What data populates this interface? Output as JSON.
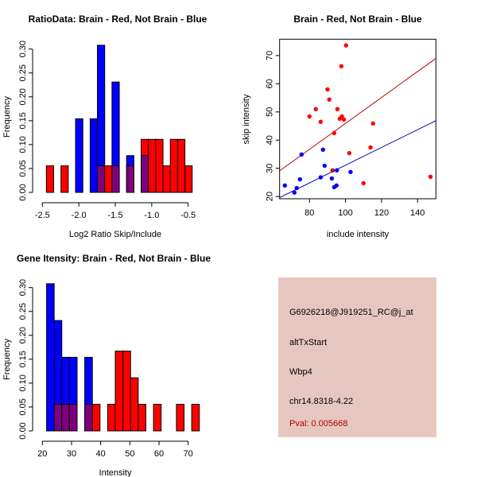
{
  "colors": {
    "red": "#ff0000",
    "blue": "#0000ff",
    "overlap": "#7f007f",
    "panel_bg": "#e6c7c0",
    "pval": "#b00000",
    "red_line": "#b00000",
    "blue_line": "#0000b0"
  },
  "chart_data": [
    {
      "type": "bar",
      "title": "RatioData: Brain - Red, Not Brain - Blue",
      "xlabel": "Log2 Ratio Skip/Include",
      "ylabel": "Frequency",
      "xlim": [
        -2.5,
        -0.5
      ],
      "ylim": [
        0,
        0.3
      ],
      "xticks": [
        -2.5,
        -2.0,
        -1.5,
        -1.0,
        -0.5
      ],
      "xtick_labels": [
        "-2.5",
        "-2.0",
        "-1.5",
        "-1.0",
        "-0.5"
      ],
      "yticks": [
        0,
        0.05,
        0.1,
        0.15,
        0.2,
        0.25,
        0.3
      ],
      "ytick_labels": [
        "0.00",
        "0.05",
        "0.10",
        "0.15",
        "0.20",
        "0.25",
        "0.30"
      ],
      "bin_start": -2.445,
      "bin_width": 0.1,
      "series": [
        {
          "name": "Brain",
          "color": "red",
          "bins": {
            "0": 0.0556,
            "2": 0.0556,
            "7": 0.0556,
            "8": 0.0556,
            "9": 0.0556,
            "11": 0.0556,
            "13": 0.111,
            "14": 0.111,
            "15": 0.111,
            "16": 0.0556,
            "17": 0.111,
            "18": 0.111,
            "19": 0.0556
          }
        },
        {
          "name": "Not Brain",
          "color": "blue",
          "bins": {
            "4": 0.154,
            "6": 0.154,
            "7": 0.308,
            "9": 0.231,
            "11": 0.077,
            "13": 0.077
          }
        }
      ]
    },
    {
      "type": "scatter",
      "title": "Brain - Red, Not Brain - Blue",
      "xlabel": "include intensity",
      "ylabel": "skip intensity",
      "xlim": [
        63.4,
        150.2
      ],
      "ylim": [
        19.2,
        75.8
      ],
      "xticks": [
        80,
        100,
        120,
        140
      ],
      "xtick_labels": [
        "80",
        "100",
        "120",
        "140"
      ],
      "yticks": [
        20,
        30,
        40,
        50,
        60,
        70
      ],
      "ytick_labels": [
        "20",
        "30",
        "40",
        "50",
        "60",
        "70"
      ],
      "series": [
        {
          "name": "Brain",
          "color": "red",
          "points": [
            [
              100.3,
              73.6
            ],
            [
              97.7,
              66.2
            ],
            [
              90.0,
              58.0
            ],
            [
              91.0,
              54.4
            ],
            [
              83.5,
              51.0
            ],
            [
              95.5,
              51.0
            ],
            [
              80.0,
              48.4
            ],
            [
              98.0,
              48.4
            ],
            [
              96.8,
              47.6
            ],
            [
              99.1,
              47.3
            ],
            [
              86.2,
              46.5
            ],
            [
              115.3,
              45.9
            ],
            [
              93.7,
              42.5
            ],
            [
              113.9,
              37.4
            ],
            [
              102.1,
              35.4
            ],
            [
              92.8,
              29.3
            ],
            [
              110.0,
              24.7
            ],
            [
              147.2,
              27.0
            ]
          ],
          "fit": [
            [
              63.4,
              29.1
            ],
            [
              150.2,
              69.0
            ]
          ]
        },
        {
          "name": "Not Brain",
          "color": "blue",
          "points": [
            [
              75.6,
              34.9
            ],
            [
              87.5,
              36.6
            ],
            [
              88.4,
              30.9
            ],
            [
              95.2,
              29.3
            ],
            [
              92.4,
              26.4
            ],
            [
              86.2,
              26.8
            ],
            [
              102.8,
              28.7
            ],
            [
              74.7,
              26.1
            ],
            [
              66.3,
              23.9
            ],
            [
              72.9,
              23.0
            ],
            [
              71.6,
              21.4
            ],
            [
              93.7,
              23.3
            ],
            [
              95.0,
              23.9
            ]
          ],
          "fit": [
            [
              63.4,
              19.6
            ],
            [
              150.2,
              46.9
            ]
          ]
        }
      ]
    },
    {
      "type": "bar",
      "title": "Gene Itensity: Brain - Red, Not Brain - Blue",
      "xlabel": "Intensity",
      "ylabel": "Frequency",
      "xlim": [
        20,
        70
      ],
      "ylim": [
        0,
        0.3
      ],
      "xticks": [
        20,
        30,
        40,
        50,
        60,
        70
      ],
      "xtick_labels": [
        "20",
        "30",
        "40",
        "50",
        "60",
        "70"
      ],
      "yticks": [
        0,
        0.05,
        0.1,
        0.15,
        0.2,
        0.25,
        0.3
      ],
      "ytick_labels": [
        "0.00",
        "0.05",
        "0.10",
        "0.15",
        "0.20",
        "0.25",
        "0.30"
      ],
      "bin_start": 21.43,
      "bin_width": 2.62,
      "series": [
        {
          "name": "Brain",
          "color": "red",
          "bins": {
            "1": 0.0556,
            "2": 0.0556,
            "3": 0.0556,
            "5": 0.0556,
            "6": 0.0556,
            "8": 0.0556,
            "9": 0.167,
            "10": 0.167,
            "11": 0.111,
            "12": 0.0556,
            "14": 0.0556,
            "17": 0.0556,
            "19": 0.0556
          }
        },
        {
          "name": "Not Brain",
          "color": "blue",
          "bins": {
            "0": 0.308,
            "1": 0.231,
            "2": 0.154,
            "3": 0.154,
            "5": 0.154
          }
        }
      ]
    }
  ],
  "info_panel": {
    "probe_id": "G6926218@J919251_RC@j_at",
    "event_type": "altTxStart",
    "gene": "Wbp4",
    "location": "chr14.8318-4.22",
    "pval": "Pval: 0.005668"
  }
}
